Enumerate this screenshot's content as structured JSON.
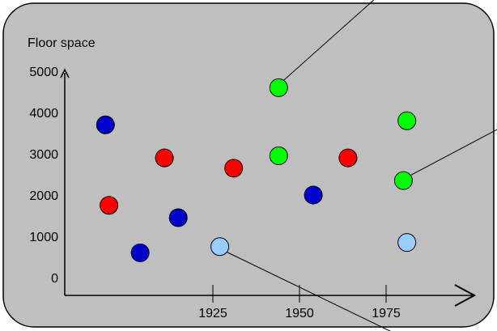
{
  "chart_data": {
    "type": "scatter",
    "ylabel": "Floor space",
    "xlabel": "",
    "x_ticks": [
      1925,
      1950,
      1975
    ],
    "y_ticks": [
      0,
      1000,
      2000,
      3000,
      4000,
      5000
    ],
    "background": "#bfbfbf",
    "points": [
      {
        "x": 1894,
        "y": 3700,
        "color": "#0000cc"
      },
      {
        "x": 1904,
        "y": 600,
        "color": "#0000cc"
      },
      {
        "x": 1915,
        "y": 1450,
        "color": "#0000cc"
      },
      {
        "x": 1954,
        "y": 2000,
        "color": "#0000cc"
      },
      {
        "x": 1895,
        "y": 1750,
        "color": "#ff0000"
      },
      {
        "x": 1911,
        "y": 2900,
        "color": "#ff0000"
      },
      {
        "x": 1931,
        "y": 2650,
        "color": "#ff0000"
      },
      {
        "x": 1964,
        "y": 2900,
        "color": "#ff0000"
      },
      {
        "x": 1944,
        "y": 4600,
        "color": "#00ff00"
      },
      {
        "x": 1944,
        "y": 2950,
        "color": "#00ff00"
      },
      {
        "x": 1981,
        "y": 3800,
        "color": "#00ff00"
      },
      {
        "x": 1980,
        "y": 2350,
        "color": "#00ff00"
      },
      {
        "x": 1927,
        "y": 750,
        "color": "#99ccff"
      },
      {
        "x": 1981,
        "y": 850,
        "color": "#99ccff"
      }
    ]
  }
}
